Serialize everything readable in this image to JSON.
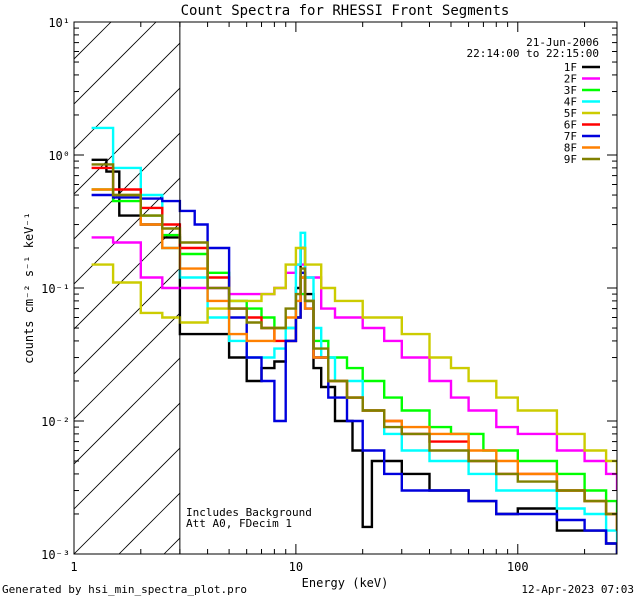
{
  "chart_data": {
    "type": "line",
    "title": "Count Spectra for RHESSI Front Segments",
    "xlabel": "Energy (keV)",
    "ylabel": "counts cm⁻² s⁻¹ keV⁻¹",
    "xscale": "log",
    "yscale": "log",
    "xlim": [
      1,
      280
    ],
    "ylim": [
      0.001,
      10
    ],
    "x_tick_labels": [
      "1",
      "10",
      "100"
    ],
    "y_tick_labels": [
      "10⁻³",
      "10⁻²",
      "10⁻¹",
      "10⁰",
      "10¹"
    ],
    "date": "21-Jun-2006",
    "time_range": "22:14:00 to 22:15:00",
    "attenuator_cutoff_kev": 3,
    "notes": [
      "Includes Background",
      "Att A0, FDecim 1"
    ],
    "legend_position": "top-right",
    "series": [
      {
        "name": "1F",
        "color": "#000000",
        "points": [
          [
            1.2,
            0.92
          ],
          [
            1.4,
            0.75
          ],
          [
            1.6,
            0.35
          ],
          [
            2,
            0.3
          ],
          [
            2.5,
            0.24
          ],
          [
            3,
            0.045
          ],
          [
            4,
            0.045
          ],
          [
            5,
            0.03
          ],
          [
            6,
            0.02
          ],
          [
            7,
            0.025
          ],
          [
            8,
            0.028
          ],
          [
            9,
            0.04
          ],
          [
            10,
            0.1
          ],
          [
            10.5,
            0.2
          ],
          [
            11,
            0.09
          ],
          [
            12,
            0.025
          ],
          [
            13,
            0.018
          ],
          [
            15,
            0.01
          ],
          [
            18,
            0.006
          ],
          [
            20,
            0.0016
          ],
          [
            22,
            0.005
          ],
          [
            30,
            0.004
          ],
          [
            40,
            0.003
          ],
          [
            60,
            0.0025
          ],
          [
            80,
            0.002
          ],
          [
            100,
            0.0022
          ],
          [
            150,
            0.0015
          ],
          [
            200,
            0.0015
          ],
          [
            250,
            0.0012
          ],
          [
            280,
            0.001
          ]
        ]
      },
      {
        "name": "2F",
        "color": "#ff00ff",
        "points": [
          [
            1.2,
            0.24
          ],
          [
            1.5,
            0.22
          ],
          [
            2,
            0.12
          ],
          [
            2.5,
            0.1
          ],
          [
            3,
            0.1
          ],
          [
            4,
            0.1
          ],
          [
            5,
            0.09
          ],
          [
            6,
            0.09
          ],
          [
            7,
            0.09
          ],
          [
            8,
            0.1
          ],
          [
            9,
            0.13
          ],
          [
            10,
            0.15
          ],
          [
            11,
            0.12
          ],
          [
            13,
            0.07
          ],
          [
            15,
            0.06
          ],
          [
            20,
            0.05
          ],
          [
            25,
            0.04
          ],
          [
            30,
            0.03
          ],
          [
            40,
            0.02
          ],
          [
            50,
            0.015
          ],
          [
            60,
            0.012
          ],
          [
            80,
            0.009
          ],
          [
            100,
            0.008
          ],
          [
            150,
            0.006
          ],
          [
            200,
            0.005
          ],
          [
            250,
            0.004
          ],
          [
            280,
            0.003
          ]
        ]
      },
      {
        "name": "3F",
        "color": "#00ff00",
        "points": [
          [
            1.2,
            0.55
          ],
          [
            1.5,
            0.45
          ],
          [
            2,
            0.35
          ],
          [
            2.5,
            0.25
          ],
          [
            3,
            0.18
          ],
          [
            4,
            0.13
          ],
          [
            5,
            0.08
          ],
          [
            6,
            0.07
          ],
          [
            7,
            0.06
          ],
          [
            8,
            0.05
          ],
          [
            9,
            0.05
          ],
          [
            10,
            0.06
          ],
          [
            10.5,
            0.09
          ],
          [
            11,
            0.08
          ],
          [
            12,
            0.04
          ],
          [
            14,
            0.03
          ],
          [
            17,
            0.025
          ],
          [
            20,
            0.02
          ],
          [
            25,
            0.015
          ],
          [
            30,
            0.012
          ],
          [
            40,
            0.009
          ],
          [
            50,
            0.008
          ],
          [
            70,
            0.006
          ],
          [
            100,
            0.005
          ],
          [
            150,
            0.004
          ],
          [
            200,
            0.003
          ],
          [
            250,
            0.0025
          ],
          [
            280,
            0.002
          ]
        ]
      },
      {
        "name": "4F",
        "color": "#00ffff",
        "points": [
          [
            1.2,
            1.6
          ],
          [
            1.5,
            0.8
          ],
          [
            2,
            0.5
          ],
          [
            2.5,
            0.2
          ],
          [
            3,
            0.12
          ],
          [
            4,
            0.06
          ],
          [
            5,
            0.04
          ],
          [
            6,
            0.03
          ],
          [
            7,
            0.03
          ],
          [
            8,
            0.035
          ],
          [
            9,
            0.05
          ],
          [
            10,
            0.15
          ],
          [
            10.5,
            0.26
          ],
          [
            11,
            0.12
          ],
          [
            12,
            0.05
          ],
          [
            13,
            0.03
          ],
          [
            15,
            0.02
          ],
          [
            20,
            0.012
          ],
          [
            25,
            0.008
          ],
          [
            30,
            0.006
          ],
          [
            40,
            0.005
          ],
          [
            60,
            0.004
          ],
          [
            80,
            0.003
          ],
          [
            100,
            0.003
          ],
          [
            150,
            0.0022
          ],
          [
            200,
            0.002
          ],
          [
            250,
            0.0015
          ],
          [
            280,
            0.0012
          ]
        ]
      },
      {
        "name": "5F",
        "color": "#cccc00",
        "points": [
          [
            1.2,
            0.15
          ],
          [
            1.5,
            0.11
          ],
          [
            2,
            0.065
          ],
          [
            2.5,
            0.06
          ],
          [
            3,
            0.055
          ],
          [
            4,
            0.07
          ],
          [
            5,
            0.08
          ],
          [
            6,
            0.08
          ],
          [
            7,
            0.09
          ],
          [
            8,
            0.1
          ],
          [
            9,
            0.15
          ],
          [
            10,
            0.2
          ],
          [
            11,
            0.15
          ],
          [
            13,
            0.1
          ],
          [
            15,
            0.08
          ],
          [
            20,
            0.06
          ],
          [
            30,
            0.045
          ],
          [
            40,
            0.03
          ],
          [
            50,
            0.025
          ],
          [
            60,
            0.02
          ],
          [
            80,
            0.015
          ],
          [
            100,
            0.012
          ],
          [
            150,
            0.008
          ],
          [
            200,
            0.006
          ],
          [
            250,
            0.005
          ],
          [
            280,
            0.004
          ]
        ]
      },
      {
        "name": "6F",
        "color": "#ff0000",
        "points": [
          [
            1.2,
            0.8
          ],
          [
            1.5,
            0.55
          ],
          [
            2,
            0.4
          ],
          [
            2.5,
            0.3
          ],
          [
            3,
            0.2
          ],
          [
            4,
            0.12
          ],
          [
            5,
            0.07
          ],
          [
            6,
            0.06
          ],
          [
            7,
            0.05
          ],
          [
            8,
            0.04
          ],
          [
            9,
            0.04
          ],
          [
            10,
            0.06
          ],
          [
            10.5,
            0.12
          ],
          [
            11,
            0.08
          ],
          [
            12,
            0.03
          ],
          [
            14,
            0.02
          ],
          [
            17,
            0.015
          ],
          [
            20,
            0.012
          ],
          [
            25,
            0.01
          ],
          [
            30,
            0.008
          ],
          [
            40,
            0.007
          ],
          [
            60,
            0.005
          ],
          [
            80,
            0.004
          ],
          [
            100,
            0.004
          ],
          [
            150,
            0.003
          ],
          [
            200,
            0.0025
          ],
          [
            250,
            0.002
          ],
          [
            280,
            0.0015
          ]
        ]
      },
      {
        "name": "7F",
        "color": "#0000dd",
        "points": [
          [
            1.2,
            0.5
          ],
          [
            1.5,
            0.48
          ],
          [
            2,
            0.47
          ],
          [
            2.5,
            0.45
          ],
          [
            3,
            0.38
          ],
          [
            3.5,
            0.3
          ],
          [
            4,
            0.2
          ],
          [
            5,
            0.06
          ],
          [
            6,
            0.03
          ],
          [
            7,
            0.02
          ],
          [
            8,
            0.01
          ],
          [
            9,
            0.04
          ],
          [
            10,
            0.06
          ],
          [
            10.5,
            0.13
          ],
          [
            11,
            0.07
          ],
          [
            12,
            0.03
          ],
          [
            14,
            0.015
          ],
          [
            17,
            0.01
          ],
          [
            20,
            0.006
          ],
          [
            25,
            0.004
          ],
          [
            30,
            0.003
          ],
          [
            40,
            0.003
          ],
          [
            60,
            0.0025
          ],
          [
            80,
            0.002
          ],
          [
            100,
            0.002
          ],
          [
            150,
            0.0018
          ],
          [
            200,
            0.0015
          ],
          [
            250,
            0.0012
          ],
          [
            280,
            0.001
          ]
        ]
      },
      {
        "name": "8F",
        "color": "#ff8000",
        "points": [
          [
            1.2,
            0.55
          ],
          [
            1.5,
            0.5
          ],
          [
            2,
            0.3
          ],
          [
            2.5,
            0.2
          ],
          [
            3,
            0.14
          ],
          [
            4,
            0.08
          ],
          [
            5,
            0.045
          ],
          [
            6,
            0.04
          ],
          [
            7,
            0.04
          ],
          [
            8,
            0.05
          ],
          [
            9,
            0.06
          ],
          [
            10,
            0.08
          ],
          [
            10.5,
            0.12
          ],
          [
            11,
            0.07
          ],
          [
            12,
            0.03
          ],
          [
            14,
            0.02
          ],
          [
            17,
            0.015
          ],
          [
            20,
            0.012
          ],
          [
            25,
            0.01
          ],
          [
            30,
            0.009
          ],
          [
            40,
            0.008
          ],
          [
            60,
            0.006
          ],
          [
            80,
            0.005
          ],
          [
            100,
            0.004
          ],
          [
            150,
            0.003
          ],
          [
            200,
            0.0025
          ],
          [
            250,
            0.002
          ],
          [
            280,
            0.0015
          ]
        ]
      },
      {
        "name": "9F",
        "color": "#808000",
        "points": [
          [
            1.2,
            0.85
          ],
          [
            1.5,
            0.5
          ],
          [
            2,
            0.35
          ],
          [
            2.5,
            0.28
          ],
          [
            3,
            0.22
          ],
          [
            4,
            0.1
          ],
          [
            5,
            0.07
          ],
          [
            6,
            0.055
          ],
          [
            7,
            0.05
          ],
          [
            8,
            0.05
          ],
          [
            9,
            0.07
          ],
          [
            10,
            0.09
          ],
          [
            10.5,
            0.14
          ],
          [
            11,
            0.08
          ],
          [
            12,
            0.035
          ],
          [
            14,
            0.02
          ],
          [
            17,
            0.015
          ],
          [
            20,
            0.012
          ],
          [
            25,
            0.009
          ],
          [
            30,
            0.008
          ],
          [
            40,
            0.006
          ],
          [
            60,
            0.005
          ],
          [
            80,
            0.004
          ],
          [
            100,
            0.0035
          ],
          [
            150,
            0.003
          ],
          [
            200,
            0.0025
          ],
          [
            250,
            0.002
          ],
          [
            280,
            0.0015
          ]
        ]
      }
    ]
  },
  "footer": {
    "generated_by": "Generated by hsi_min_spectra_plot.pro",
    "timestamp": "12-Apr-2023 07:03"
  }
}
